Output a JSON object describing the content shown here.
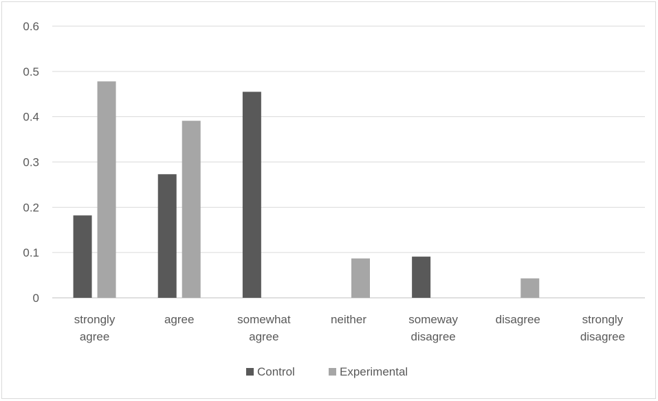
{
  "chart_data": {
    "type": "bar",
    "categories": [
      [
        "strongly",
        "agree"
      ],
      [
        "agree"
      ],
      [
        "somewhat",
        "agree"
      ],
      [
        "neither"
      ],
      [
        "someway",
        "disagree"
      ],
      [
        "disagree"
      ],
      [
        "strongly",
        "disagree"
      ]
    ],
    "series": [
      {
        "name": "Control",
        "color": "#595959",
        "values": [
          0.182,
          0.273,
          0.455,
          0,
          0.091,
          0,
          0
        ]
      },
      {
        "name": "Experimental",
        "color": "#a6a6a6",
        "values": [
          0.478,
          0.391,
          0,
          0.087,
          0,
          0.043,
          0
        ]
      }
    ],
    "yticks": [
      "0",
      "0.1",
      "0.2",
      "0.3",
      "0.4",
      "0.5",
      "0.6"
    ],
    "ylim": [
      0,
      0.6
    ],
    "grid": true,
    "legend_position": "bottom",
    "gridline_color": "#d9d9d9",
    "axis_color": "#bfbfbf"
  }
}
